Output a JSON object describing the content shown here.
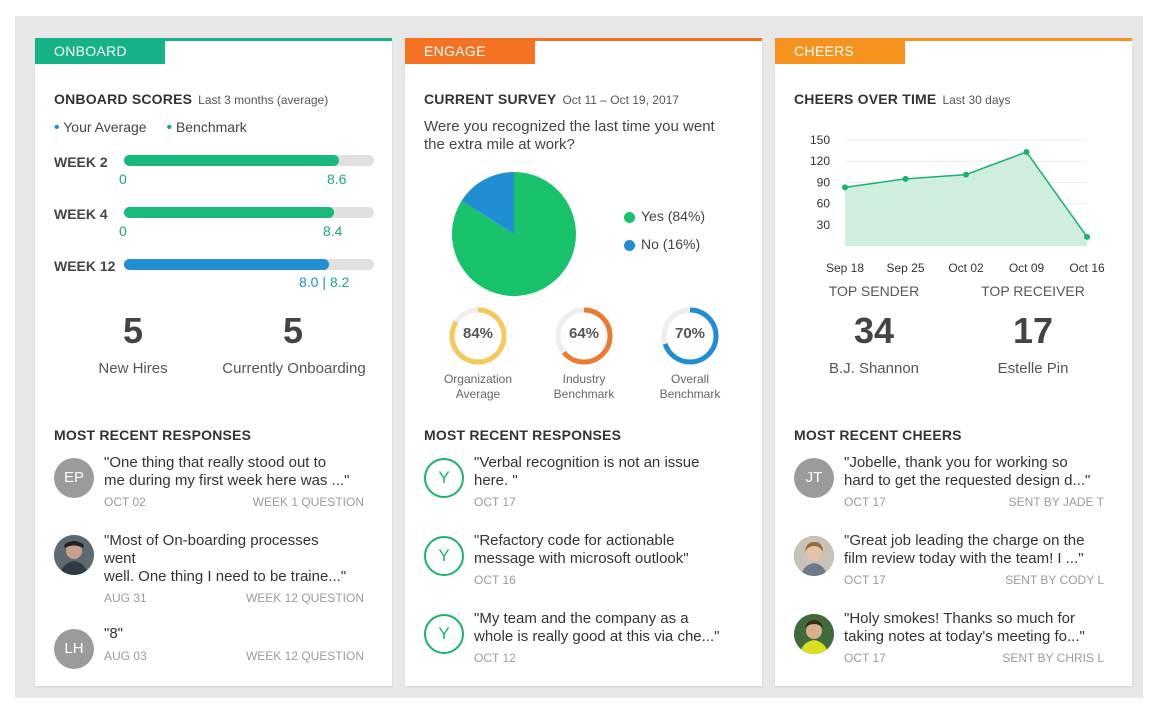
{
  "colors": {
    "onboard": "#15b387",
    "engage": "#f37323",
    "cheers": "#f6931f",
    "green": "#18c26a",
    "blue": "#1f8ed3",
    "teal": "#1ba784",
    "yellow": "#f4c95a",
    "orange": "#ea7b32"
  },
  "onboard": {
    "tab": "ONBOARD",
    "scores_title": "ONBOARD SCORES",
    "scores_sub": "Last 3 months (average)",
    "legend_your": "Your Average",
    "legend_bench": "Benchmark",
    "weeks": [
      {
        "label": "WEEK 2",
        "left": "0",
        "right": "8.6",
        "fill_fraction": 0.86
      },
      {
        "label": "WEEK 4",
        "left": "0",
        "right": "8.4",
        "fill_fraction": 0.84
      },
      {
        "label": "WEEK 12",
        "left": "8.0",
        "sep": "|",
        "right": "8.2",
        "fill_fraction": 0.82
      }
    ],
    "stats": [
      {
        "value": "5",
        "label": "New Hires"
      },
      {
        "value": "5",
        "label": "Currently Onboarding"
      }
    ],
    "recent_title": "MOST RECENT RESPONSES",
    "responses": [
      {
        "initials": "EP",
        "line1": "\"One thing that really stood out to",
        "line2": "me during my first week here was ...\"",
        "line3": "",
        "date": "OCT 02",
        "tag": "WEEK 1 QUESTION"
      },
      {
        "initials": "",
        "line1": "\"Most of On-boarding processes",
        "line2": "went",
        "line3": "well. One thing I need to be traine...\"",
        "date": "AUG 31",
        "tag": "WEEK 12 QUESTION"
      },
      {
        "initials": "LH",
        "line1": "\"8\"",
        "line2": "",
        "line3": "",
        "date": "AUG 03",
        "tag": "WEEK 12 QUESTION"
      }
    ]
  },
  "engage": {
    "tab": "ENGAGE",
    "survey_title": "CURRENT SURVEY",
    "survey_sub": "Oct 11 – Oct 19, 2017",
    "question_l1": "Were you recognized the last time you went",
    "question_l2": "the extra mile at work?",
    "pie_legend_yes": "Yes (84%)",
    "pie_legend_no": "No (16%)",
    "gauges": [
      {
        "value": "84%",
        "fraction": 0.84,
        "label1": "Organization",
        "label2": "Average"
      },
      {
        "value": "64%",
        "fraction": 0.64,
        "label1": "Industry",
        "label2": "Benchmark"
      },
      {
        "value": "70%",
        "fraction": 0.7,
        "label1": "Overall",
        "label2": "Benchmark"
      }
    ],
    "recent_title": "MOST RECENT RESPONSES",
    "responses": [
      {
        "initial": "Y",
        "line1": "\"Verbal recognition is not an issue",
        "line2": "here. \"",
        "date": "OCT 17"
      },
      {
        "initial": "Y",
        "line1": "\"Refactory code for actionable",
        "line2": "message with microsoft outlook\"",
        "date": "OCT 16"
      },
      {
        "initial": "Y",
        "line1": "\"My team and the company as a",
        "line2": "whole is really good at this via che...\"",
        "date": "OCT 12"
      }
    ]
  },
  "cheers": {
    "tab": "CHEERS",
    "over_time_title": "CHEERS OVER TIME",
    "over_time_sub": "Last 30 days",
    "top_sender_label": "TOP SENDER",
    "top_sender_value": "34",
    "top_sender_name": "B.J. Shannon",
    "top_receiver_label": "TOP RECEIVER",
    "top_receiver_value": "17",
    "top_receiver_name": "Estelle Pin",
    "recent_title": "MOST RECENT CHEERS",
    "items": [
      {
        "initials": "JT",
        "line1": "\"Jobelle, thank you for working so",
        "line2": "hard to get the requested design d...\"",
        "date": "OCT 17",
        "sender": "SENT BY JADE T"
      },
      {
        "initials": "",
        "line1": "\"Great job leading the charge on the",
        "line2": "film review today with the team! I ...\"",
        "date": "OCT 17",
        "sender": "SENT BY CODY L"
      },
      {
        "initials": "",
        "line1": "\"Holy smokes! Thanks so much for",
        "line2": "taking notes at today's meeting fo...\"",
        "date": "OCT 17",
        "sender": "SENT BY CHRIS L"
      }
    ]
  },
  "chart_data": [
    {
      "type": "area",
      "title": "CHEERS OVER TIME",
      "categories": [
        "Sep 18",
        "Sep 25",
        "Oct 02",
        "Oct 09",
        "Oct 16"
      ],
      "values": [
        83,
        95,
        101,
        133,
        13
      ],
      "y_ticks": [
        "30",
        "60",
        "90",
        "120",
        "150"
      ],
      "ylim": [
        0,
        150
      ],
      "grid": true
    },
    {
      "type": "pie",
      "categories": [
        "Yes",
        "No"
      ],
      "values": [
        84,
        16
      ],
      "legend": "right"
    }
  ]
}
